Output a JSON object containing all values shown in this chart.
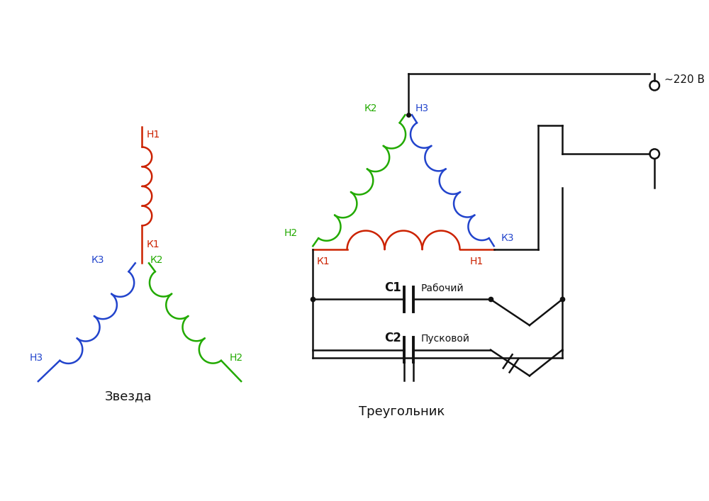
{
  "bg_color": "#ffffff",
  "red": "#cc2200",
  "green": "#22aa00",
  "blue": "#2244cc",
  "black": "#111111",
  "label_zvezda": "Звезда",
  "label_treugolnik": "Треугольник",
  "label_220v": "~220 В",
  "label_C1": "С1",
  "label_C1_desc": "Рабочий",
  "label_C2": "С2",
  "label_C2_desc": "Пусковой"
}
